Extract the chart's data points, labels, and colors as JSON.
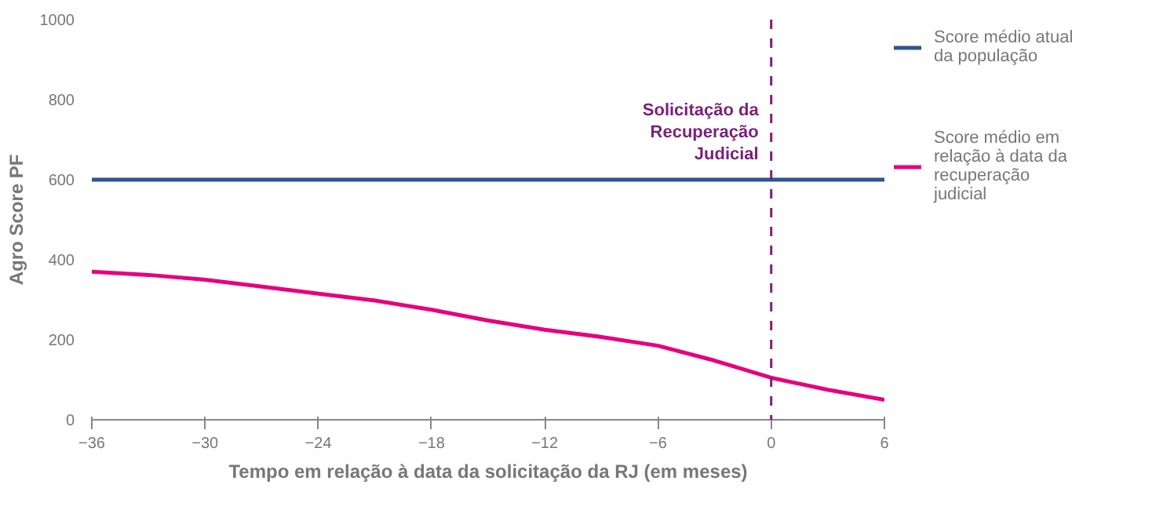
{
  "chart_data": {
    "type": "line",
    "xlabel": "Tempo em relação à data da solicitação da RJ (em meses)",
    "ylabel": "Agro Score PF",
    "x": [
      -36,
      -33,
      -30,
      -27,
      -24,
      -21,
      -18,
      -15,
      -12,
      -9,
      -6,
      -3,
      0,
      3,
      6
    ],
    "series": [
      {
        "name": "Score médio atual da população",
        "color": "#2b5596",
        "x": [
          -36,
          6
        ],
        "values": [
          600,
          600
        ]
      },
      {
        "name": "Score médio em relação à data da recuperação judicial",
        "color": "#e6007e",
        "values": [
          370,
          362,
          350,
          333,
          315,
          298,
          275,
          248,
          225,
          207,
          185,
          148,
          105,
          75,
          50
        ]
      }
    ],
    "xlim": [
      -36,
      6
    ],
    "xticks": [
      -36,
      -30,
      -24,
      -18,
      -12,
      -6,
      0,
      6
    ],
    "ylim": [
      0,
      1000
    ],
    "yticks": [
      0,
      200,
      400,
      600,
      800,
      1000
    ],
    "ref_lines": [
      {
        "axis": "x",
        "value": 0,
        "label": "Solicitação da Recuperação Judicial",
        "color": "#7b1f7b",
        "line_style": "dashed"
      }
    ],
    "grid": false,
    "legend": "right",
    "marker": "none",
    "line_style": "solid"
  }
}
